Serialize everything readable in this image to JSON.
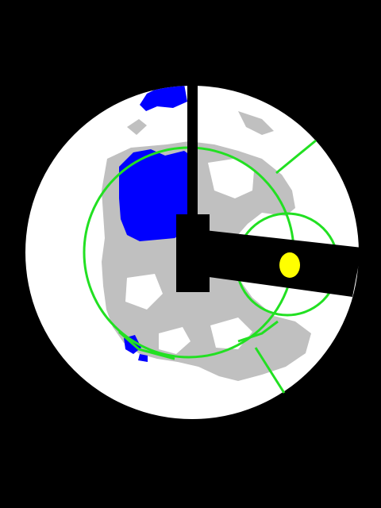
{
  "colors": {
    "background": "#000000",
    "disk": "#ffffff",
    "gray_region": "#c0c0c0",
    "blue_region": "#0000ff",
    "outline": "#22e022",
    "marker": "#ffff00",
    "occluder": "#000000"
  },
  "icons": {
    "marker": "yellow-dot-icon"
  }
}
